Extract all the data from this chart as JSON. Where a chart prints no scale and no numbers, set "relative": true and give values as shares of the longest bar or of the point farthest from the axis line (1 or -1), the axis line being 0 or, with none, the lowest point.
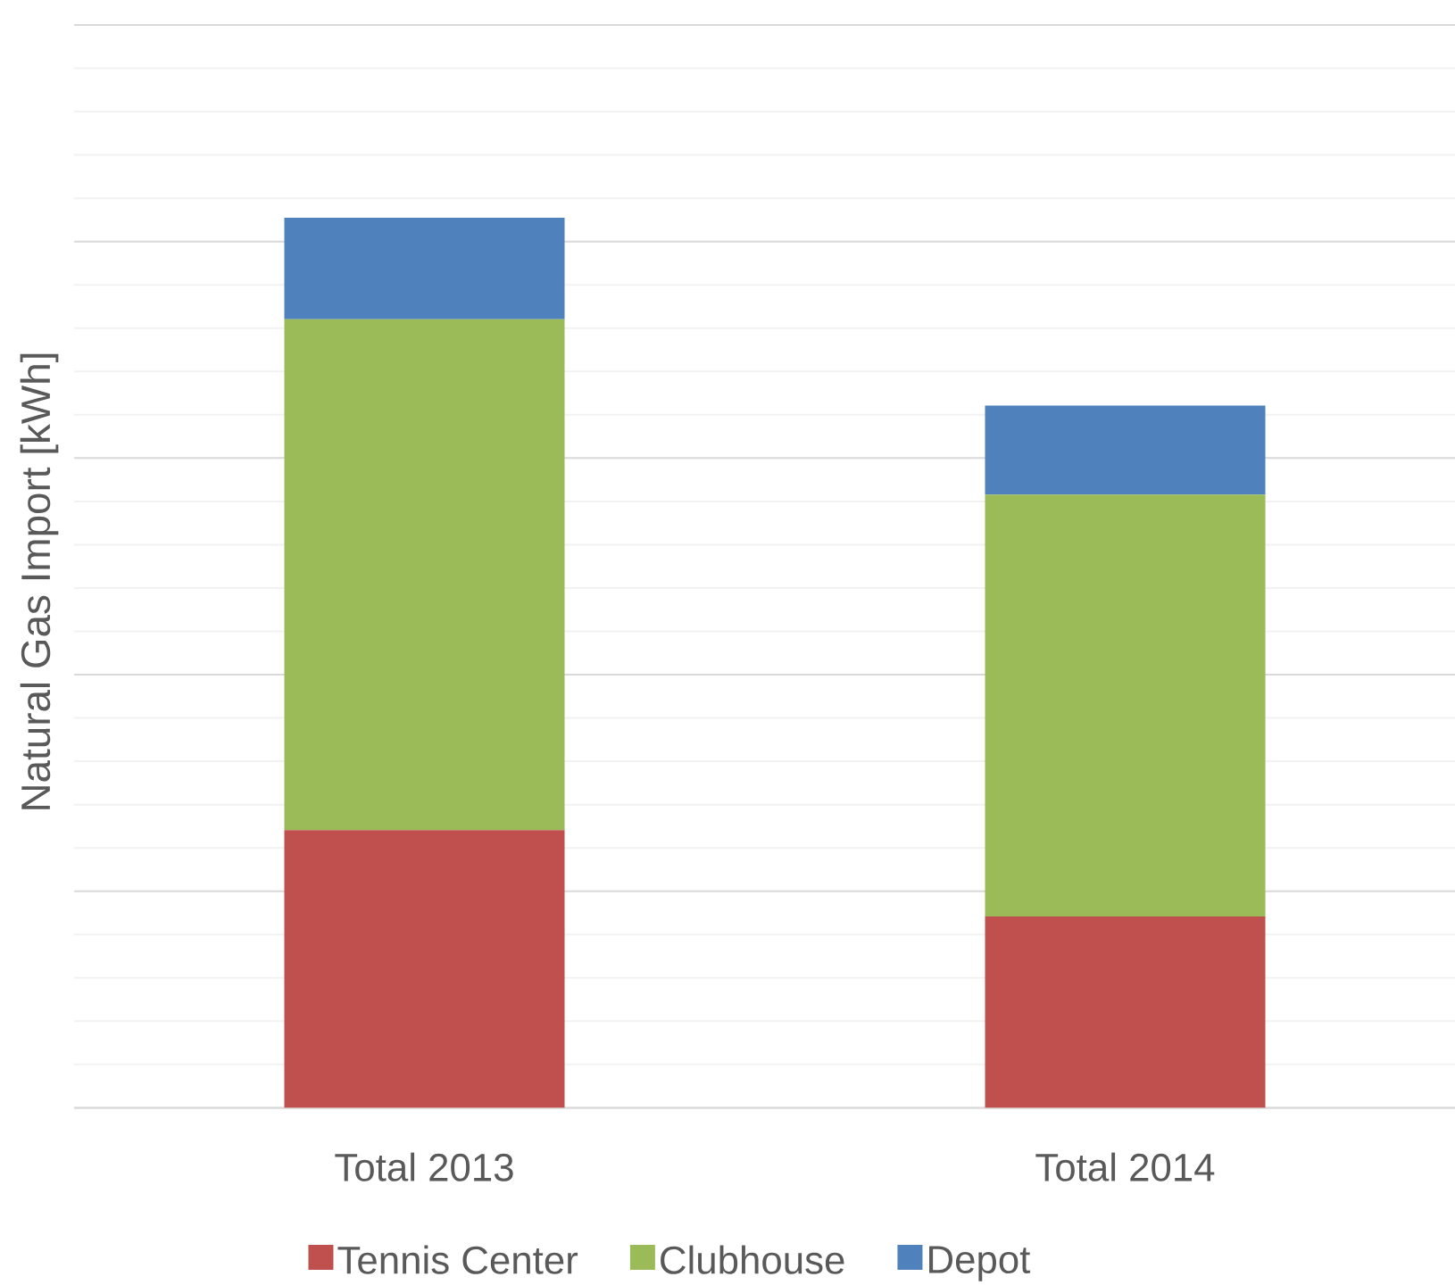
{
  "chart_data": {
    "type": "bar",
    "stacked": true,
    "relative": true,
    "ylabel": "Natural Gas Import [kWh]",
    "categories": [
      "Total 2013",
      "Total 2014"
    ],
    "series": [
      {
        "name": "Tennis Center",
        "color": "#c0504d",
        "values": [
          0.312,
          0.215
        ]
      },
      {
        "name": "Clubhouse",
        "color": "#9bbb59",
        "values": [
          0.574,
          0.474
        ]
      },
      {
        "name": "Depot",
        "color": "#4f81bd",
        "values": [
          0.114,
          0.1
        ]
      }
    ],
    "grid": "y",
    "legend": "bottom"
  }
}
